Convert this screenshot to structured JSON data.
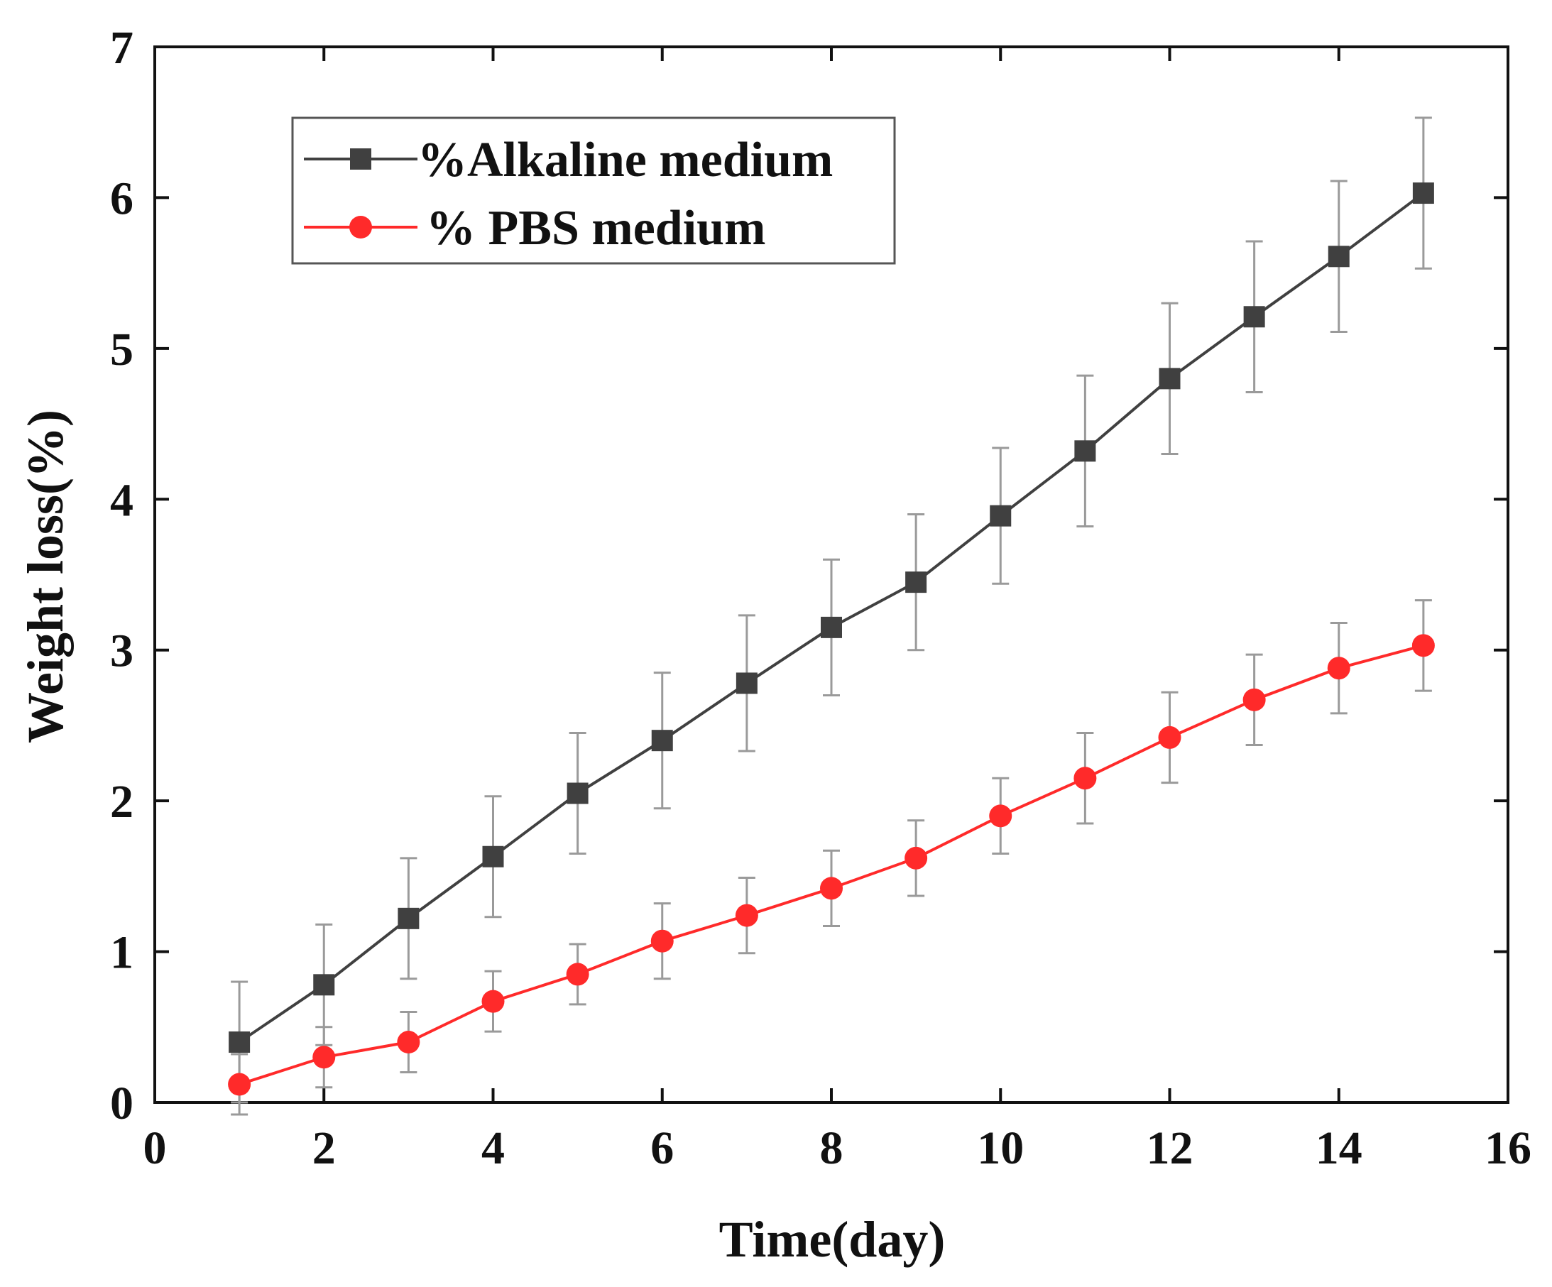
{
  "chart_data": {
    "type": "line",
    "title": "",
    "xlabel": "Time(day)",
    "ylabel": "Weight loss(%)",
    "xlim": [
      0,
      16
    ],
    "ylim": [
      0,
      7
    ],
    "xticks": [
      0,
      2,
      4,
      6,
      8,
      10,
      12,
      14,
      16
    ],
    "yticks": [
      0,
      1,
      2,
      3,
      4,
      5,
      6,
      7
    ],
    "grid": false,
    "legend_position": "top-left",
    "x": [
      1,
      2,
      3,
      4,
      5,
      6,
      7,
      8,
      9,
      10,
      11,
      12,
      13,
      14,
      15
    ],
    "series": [
      {
        "name": "%Alkaline medium",
        "color": "#404040",
        "marker": "square",
        "values": [
          0.4,
          0.78,
          1.22,
          1.63,
          2.05,
          2.4,
          2.78,
          3.15,
          3.45,
          3.89,
          4.32,
          4.8,
          5.21,
          5.61,
          6.03
        ],
        "errors": [
          0.4,
          0.4,
          0.4,
          0.4,
          0.4,
          0.45,
          0.45,
          0.45,
          0.45,
          0.45,
          0.5,
          0.5,
          0.5,
          0.5,
          0.5
        ]
      },
      {
        "name": "% PBS medium",
        "color": "#ff2a2a",
        "marker": "circle",
        "values": [
          0.12,
          0.3,
          0.4,
          0.67,
          0.85,
          1.07,
          1.24,
          1.42,
          1.62,
          1.9,
          2.15,
          2.42,
          2.67,
          2.88,
          3.03
        ],
        "errors": [
          0.2,
          0.2,
          0.2,
          0.2,
          0.2,
          0.25,
          0.25,
          0.25,
          0.25,
          0.25,
          0.3,
          0.3,
          0.3,
          0.3,
          0.3
        ]
      }
    ]
  }
}
